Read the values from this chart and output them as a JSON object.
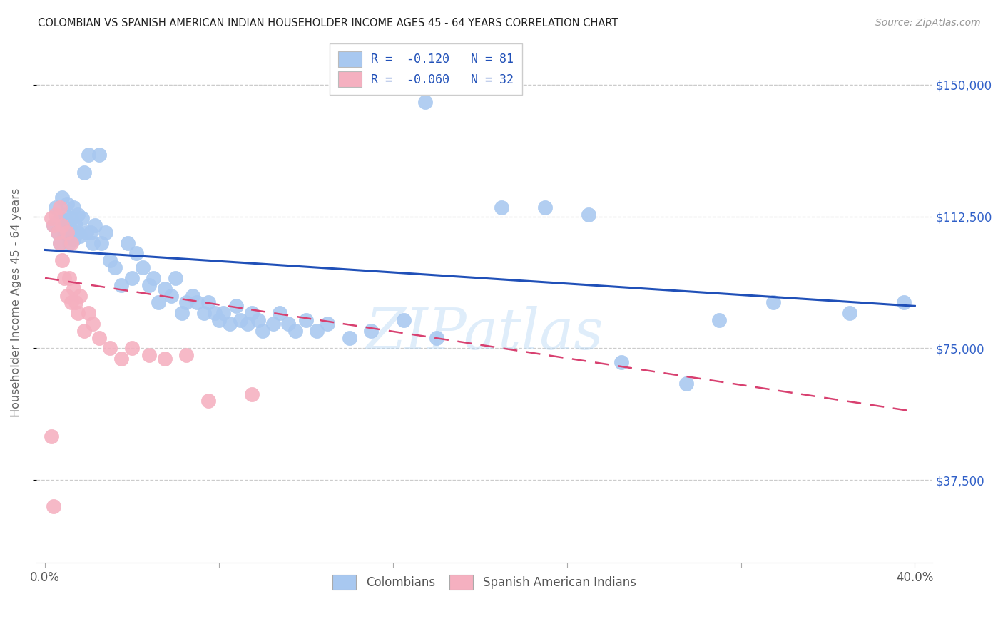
{
  "title": "COLOMBIAN VS SPANISH AMERICAN INDIAN HOUSEHOLDER INCOME AGES 45 - 64 YEARS CORRELATION CHART",
  "source": "Source: ZipAtlas.com",
  "ylabel": "Householder Income Ages 45 - 64 years",
  "xlim_min": -0.004,
  "xlim_max": 0.408,
  "ylim_min": 14000,
  "ylim_max": 162000,
  "yticks": [
    37500,
    75000,
    112500,
    150000
  ],
  "ytick_labels": [
    "$37,500",
    "$75,000",
    "$112,500",
    "$150,000"
  ],
  "xticks": [
    0.0,
    0.08,
    0.16,
    0.24,
    0.32,
    0.4
  ],
  "xtick_labels": [
    "0.0%",
    "",
    "",
    "",
    "",
    "40.0%"
  ],
  "watermark": "ZIPatlas",
  "blue_color": "#A8C8F0",
  "blue_line_color": "#2050B8",
  "pink_color": "#F5B0C0",
  "pink_line_color": "#D84070",
  "grid_color": "#CCCCCC",
  "blue_trend_x0": 0.0,
  "blue_trend_y0": 103000,
  "blue_trend_x1": 0.4,
  "blue_trend_y1": 87000,
  "pink_trend_x0": 0.0,
  "pink_trend_y0": 95000,
  "pink_trend_x1": 0.4,
  "pink_trend_y1": 57000,
  "blue_x": [
    0.004,
    0.005,
    0.006,
    0.007,
    0.007,
    0.008,
    0.009,
    0.009,
    0.01,
    0.01,
    0.011,
    0.011,
    0.012,
    0.012,
    0.013,
    0.013,
    0.014,
    0.015,
    0.015,
    0.016,
    0.017,
    0.018,
    0.019,
    0.02,
    0.021,
    0.022,
    0.023,
    0.025,
    0.026,
    0.028,
    0.03,
    0.032,
    0.035,
    0.038,
    0.04,
    0.042,
    0.045,
    0.048,
    0.05,
    0.052,
    0.055,
    0.058,
    0.06,
    0.063,
    0.065,
    0.068,
    0.07,
    0.073,
    0.075,
    0.078,
    0.08,
    0.082,
    0.085,
    0.088,
    0.09,
    0.093,
    0.095,
    0.098,
    0.1,
    0.105,
    0.108,
    0.112,
    0.115,
    0.12,
    0.125,
    0.13,
    0.14,
    0.15,
    0.165,
    0.18,
    0.195,
    0.21,
    0.23,
    0.25,
    0.265,
    0.295,
    0.31,
    0.335,
    0.37,
    0.395,
    0.175
  ],
  "blue_y": [
    110000,
    115000,
    108000,
    112000,
    105000,
    118000,
    113000,
    108000,
    116000,
    111000,
    110000,
    105000,
    112000,
    108000,
    106000,
    115000,
    110000,
    108000,
    113000,
    107000,
    112000,
    125000,
    108000,
    130000,
    108000,
    105000,
    110000,
    130000,
    105000,
    108000,
    100000,
    98000,
    93000,
    105000,
    95000,
    102000,
    98000,
    93000,
    95000,
    88000,
    92000,
    90000,
    95000,
    85000,
    88000,
    90000,
    88000,
    85000,
    88000,
    85000,
    83000,
    85000,
    82000,
    87000,
    83000,
    82000,
    85000,
    83000,
    80000,
    82000,
    85000,
    82000,
    80000,
    83000,
    80000,
    82000,
    78000,
    80000,
    83000,
    78000,
    150000,
    115000,
    115000,
    113000,
    71000,
    65000,
    83000,
    88000,
    85000,
    88000,
    145000
  ],
  "pink_x": [
    0.003,
    0.004,
    0.005,
    0.006,
    0.007,
    0.007,
    0.008,
    0.008,
    0.009,
    0.01,
    0.01,
    0.011,
    0.012,
    0.012,
    0.013,
    0.014,
    0.015,
    0.016,
    0.018,
    0.02,
    0.022,
    0.025,
    0.03,
    0.035,
    0.04,
    0.048,
    0.055,
    0.065,
    0.075,
    0.095,
    0.003,
    0.004
  ],
  "pink_y": [
    112000,
    110000,
    113000,
    108000,
    105000,
    115000,
    110000,
    100000,
    95000,
    108000,
    90000,
    95000,
    88000,
    105000,
    92000,
    88000,
    85000,
    90000,
    80000,
    85000,
    82000,
    78000,
    75000,
    72000,
    75000,
    73000,
    72000,
    73000,
    60000,
    62000,
    50000,
    30000
  ]
}
